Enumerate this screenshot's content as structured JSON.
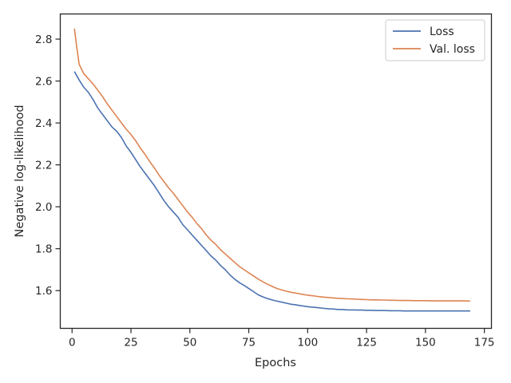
{
  "chart_data": {
    "type": "line",
    "title": "",
    "xlabel": "Epochs",
    "ylabel": "Negative log-likelihood",
    "xlim": [
      -5,
      178
    ],
    "ylim": [
      1.42,
      2.92
    ],
    "xticks": [
      0,
      25,
      50,
      75,
      100,
      125,
      150,
      175
    ],
    "yticks": [
      1.6,
      1.8,
      2.0,
      2.2,
      2.4,
      2.6,
      2.8
    ],
    "grid": false,
    "legend_position": "top-right",
    "series": [
      {
        "name": "Loss",
        "color": "#4c72b0",
        "x": [
          1,
          3,
          5,
          7,
          9,
          11,
          13,
          15,
          17,
          19,
          21,
          23,
          25,
          27,
          29,
          31,
          33,
          35,
          37,
          39,
          41,
          43,
          45,
          47,
          49,
          51,
          53,
          55,
          57,
          59,
          61,
          63,
          65,
          67,
          69,
          71,
          73,
          75,
          77,
          79,
          81,
          83,
          85,
          87,
          89,
          91,
          93,
          95,
          97,
          99,
          101,
          103,
          105,
          107,
          109,
          111,
          113,
          115,
          117,
          119,
          121,
          123,
          125,
          127,
          129,
          131,
          133,
          135,
          137,
          139,
          141,
          143,
          145,
          147,
          149,
          151,
          153,
          155,
          157,
          159,
          161,
          163,
          165,
          167,
          169
        ],
        "values": [
          2.645,
          2.605,
          2.57,
          2.545,
          2.51,
          2.47,
          2.44,
          2.41,
          2.38,
          2.36,
          2.33,
          2.29,
          2.26,
          2.225,
          2.19,
          2.16,
          2.13,
          2.1,
          2.065,
          2.03,
          2.0,
          1.975,
          1.95,
          1.915,
          1.89,
          1.865,
          1.84,
          1.815,
          1.79,
          1.765,
          1.745,
          1.72,
          1.7,
          1.675,
          1.655,
          1.638,
          1.625,
          1.61,
          1.595,
          1.58,
          1.57,
          1.562,
          1.555,
          1.55,
          1.545,
          1.54,
          1.535,
          1.532,
          1.528,
          1.525,
          1.522,
          1.52,
          1.518,
          1.515,
          1.513,
          1.512,
          1.51,
          1.51,
          1.508,
          1.508,
          1.507,
          1.507,
          1.506,
          1.506,
          1.505,
          1.505,
          1.505,
          1.504,
          1.504,
          1.504,
          1.503,
          1.503,
          1.503,
          1.503,
          1.503,
          1.503,
          1.503,
          1.503,
          1.503,
          1.503,
          1.503,
          1.503,
          1.503,
          1.503,
          1.503
        ]
      },
      {
        "name": "Val. loss",
        "color": "#dd8452",
        "x": [
          1,
          2,
          3,
          5,
          7,
          9,
          11,
          13,
          15,
          17,
          19,
          21,
          23,
          25,
          27,
          29,
          31,
          33,
          35,
          37,
          39,
          41,
          43,
          45,
          47,
          49,
          51,
          53,
          55,
          57,
          59,
          61,
          63,
          65,
          67,
          69,
          71,
          73,
          75,
          77,
          79,
          81,
          83,
          85,
          87,
          89,
          91,
          93,
          95,
          97,
          99,
          101,
          103,
          105,
          107,
          109,
          111,
          113,
          115,
          117,
          119,
          121,
          123,
          125,
          127,
          129,
          131,
          133,
          135,
          137,
          139,
          141,
          143,
          145,
          147,
          149,
          151,
          153,
          155,
          157,
          159,
          161,
          163,
          165,
          167,
          169
        ],
        "values": [
          2.85,
          2.76,
          2.68,
          2.635,
          2.61,
          2.585,
          2.555,
          2.525,
          2.49,
          2.46,
          2.43,
          2.4,
          2.37,
          2.345,
          2.315,
          2.28,
          2.25,
          2.215,
          2.185,
          2.15,
          2.12,
          2.09,
          2.065,
          2.035,
          2.005,
          1.975,
          1.95,
          1.92,
          1.895,
          1.865,
          1.84,
          1.82,
          1.795,
          1.775,
          1.755,
          1.735,
          1.715,
          1.7,
          1.685,
          1.67,
          1.655,
          1.642,
          1.63,
          1.62,
          1.61,
          1.603,
          1.597,
          1.592,
          1.588,
          1.584,
          1.58,
          1.577,
          1.574,
          1.571,
          1.569,
          1.567,
          1.565,
          1.563,
          1.562,
          1.561,
          1.56,
          1.559,
          1.558,
          1.557,
          1.556,
          1.556,
          1.555,
          1.555,
          1.554,
          1.554,
          1.553,
          1.553,
          1.553,
          1.552,
          1.552,
          1.552,
          1.552,
          1.551,
          1.551,
          1.551,
          1.551,
          1.551,
          1.551,
          1.551,
          1.551,
          1.55
        ]
      }
    ]
  }
}
